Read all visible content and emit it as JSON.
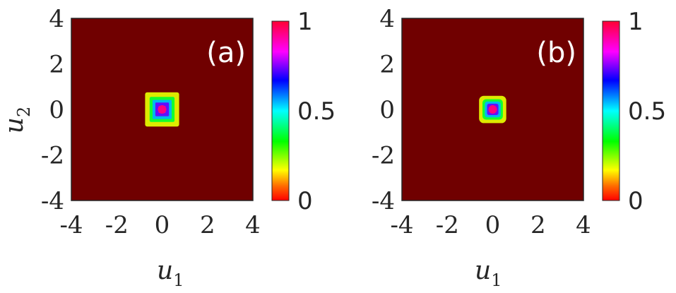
{
  "chart_data": [
    {
      "type": "heatmap",
      "panel_label": "(a)",
      "xlabel": "u",
      "xlabel_sub": "1",
      "ylabel": "u",
      "ylabel_sub": "2",
      "xlim": [
        -4,
        4
      ],
      "ylim": [
        -4,
        4
      ],
      "xticks": [
        "-4",
        "-2",
        "0",
        "2",
        "4"
      ],
      "yticks": [
        "4",
        "2",
        "0",
        "-2",
        "-4"
      ],
      "colorbar": {
        "range": [
          0,
          1
        ],
        "ticks": [
          "1",
          "0.5",
          "0"
        ],
        "colormap": "hsv"
      },
      "background_value": 0.0,
      "peak_center": [
        0,
        0
      ],
      "peak_value": 1.0,
      "contour_levels": [
        {
          "level": 0.2,
          "halfwidth": 0.75
        },
        {
          "level": 0.4,
          "halfwidth": 0.55
        },
        {
          "level": 0.6,
          "halfwidth": 0.42
        },
        {
          "level": 0.8,
          "halfwidth": 0.3
        },
        {
          "level": 0.95,
          "halfwidth": 0.15
        }
      ]
    },
    {
      "type": "heatmap",
      "panel_label": "(b)",
      "xlabel": "u",
      "xlabel_sub": "1",
      "ylabel": "",
      "ylabel_sub": "",
      "xlim": [
        -4,
        4
      ],
      "ylim": [
        -4,
        4
      ],
      "xticks": [
        "-4",
        "-2",
        "0",
        "2",
        "4"
      ],
      "yticks": [
        "4",
        "2",
        "0",
        "-2",
        "-4"
      ],
      "colorbar": {
        "range": [
          0,
          1
        ],
        "ticks": [
          "1",
          "0.5",
          "0"
        ],
        "colormap": "hsv"
      },
      "background_value": 0.0,
      "peak_center": [
        0,
        0
      ],
      "peak_value": 1.0,
      "contour_levels": [
        {
          "level": 0.2,
          "halfwidth": 0.6
        },
        {
          "level": 0.4,
          "halfwidth": 0.45
        },
        {
          "level": 0.6,
          "halfwidth": 0.35
        },
        {
          "level": 0.8,
          "halfwidth": 0.25
        },
        {
          "level": 0.95,
          "halfwidth": 0.13
        }
      ]
    }
  ],
  "colors": {
    "background": "#700000",
    "axis": "#262626",
    "panel_text": "#ffffff"
  }
}
